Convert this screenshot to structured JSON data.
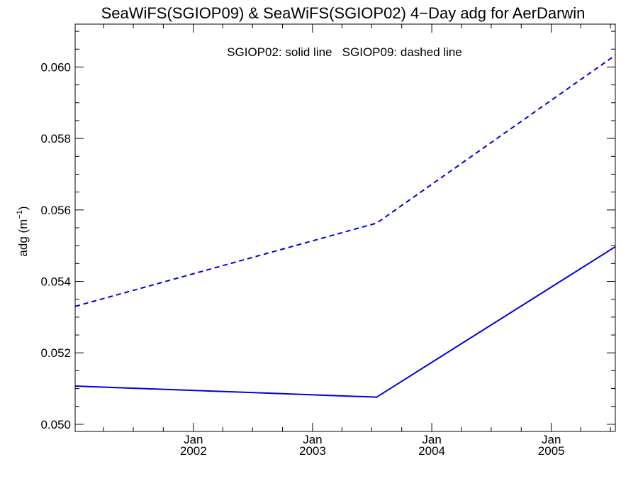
{
  "chart_data": {
    "type": "line",
    "title": "SeaWiFS(SGIOP09) & SeaWiFS(SGIOP02) 4−Day adg for AerDarwin",
    "annotation": "SGIOP02: solid line   SGIOP09: dashed line",
    "xlabel": "",
    "ylabel": "adg (m",
    "ylabel_superscript": "−1",
    "ylabel_suffix": ")",
    "x_tick_labels": [
      {
        "month": "Jan",
        "year": "2002",
        "x": "2002-01-01"
      },
      {
        "month": "Jan",
        "year": "2003",
        "x": "2003-01-01"
      },
      {
        "month": "Jan",
        "year": "2004",
        "x": "2004-01-01"
      },
      {
        "month": "Jan",
        "year": "2005",
        "x": "2005-01-01"
      }
    ],
    "xlim": [
      "2001-01-04",
      "2005-07-16"
    ],
    "ylim": [
      0.0498,
      0.0612
    ],
    "y_ticks": [
      "0.050",
      "0.052",
      "0.054",
      "0.056",
      "0.058",
      "0.060"
    ],
    "grid": false,
    "series": [
      {
        "name": "SGIOP02",
        "style": "solid",
        "color": "#0000dd",
        "x": [
          "2001-01-04",
          "2003-07-16",
          "2005-07-16"
        ],
        "y": [
          0.05107,
          0.05076,
          0.05497
        ]
      },
      {
        "name": "SGIOP09",
        "style": "dashed",
        "color": "#0000dd",
        "x": [
          "2001-01-04",
          "2003-07-16",
          "2005-07-16"
        ],
        "y": [
          0.0533,
          0.05563,
          0.06033
        ]
      }
    ]
  }
}
